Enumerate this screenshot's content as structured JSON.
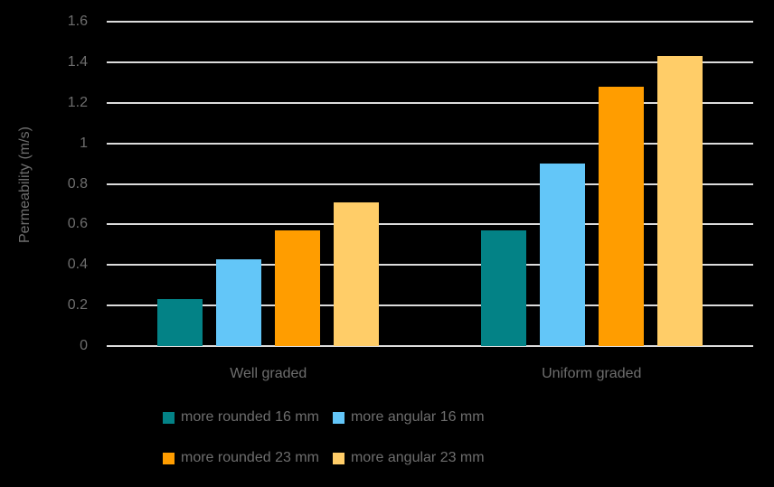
{
  "chart_data": {
    "type": "bar",
    "title": "",
    "xlabel": "",
    "ylabel": "Permeability (m/s)",
    "categories": [
      "Well graded",
      "Uniform graded"
    ],
    "series": [
      {
        "name": "more rounded 16 mm",
        "color": "#038286",
        "values": [
          0.23,
          0.57
        ]
      },
      {
        "name": "more angular 16 mm",
        "color": "#63C6F8",
        "values": [
          0.43,
          0.9
        ]
      },
      {
        "name": "more rounded 23 mm",
        "color": "#FF9D00",
        "values": [
          0.57,
          1.28
        ]
      },
      {
        "name": "more angular 23 mm",
        "color": "#FFCD68",
        "values": [
          0.71,
          1.43
        ]
      }
    ],
    "ylim": [
      0,
      1.6
    ],
    "ytick_step": 0.2,
    "yticks": [
      "0",
      "0.2",
      "0.4",
      "0.6",
      "0.8",
      "1",
      "1.2",
      "1.4",
      "1.6"
    ],
    "grid": true,
    "legend_position": "bottom-two-rows"
  },
  "style": {
    "background_color": "#000000",
    "text_color": "#6E6E6E",
    "gridline_color": "#DCDCDC",
    "axis_line_color": "#DCDCDC"
  }
}
